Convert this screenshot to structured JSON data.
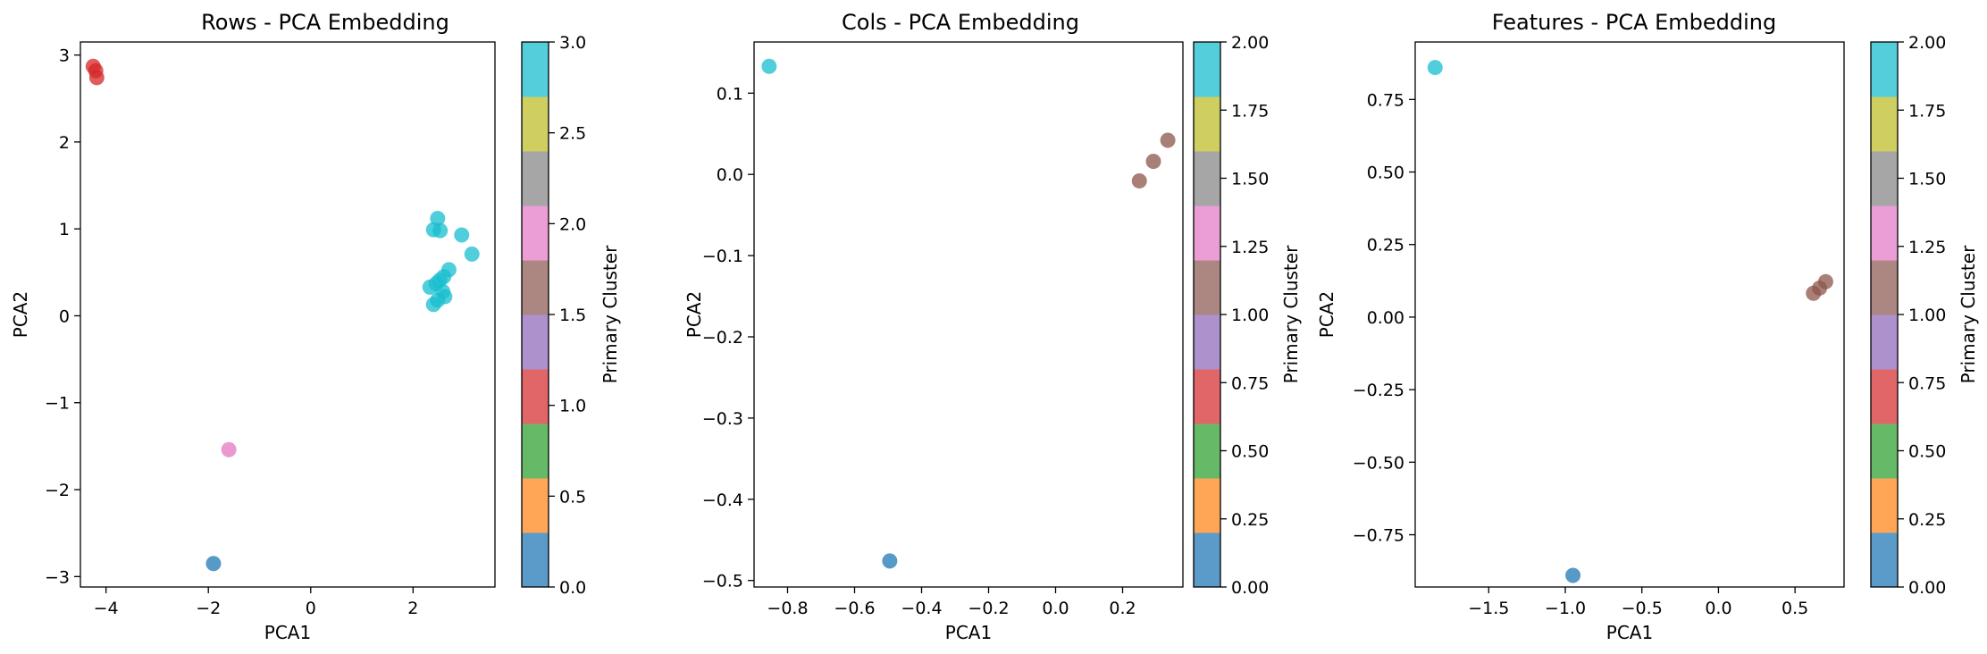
{
  "chart_data": [
    {
      "type": "scatter",
      "title": "Rows - PCA Embedding",
      "xlabel": "PCA1",
      "ylabel": "PCA2",
      "xlim": [
        -4.5,
        3.6
      ],
      "ylim": [
        -3.12,
        3.15
      ],
      "xticks": [
        -4,
        -2,
        0,
        2
      ],
      "yticks": [
        -3,
        -2,
        -1,
        0,
        1,
        2,
        3
      ],
      "xtick_labels": [
        "−4",
        "−2",
        "0",
        "2"
      ],
      "ytick_labels": [
        "−3",
        "−2",
        "−1",
        "0",
        "1",
        "2",
        "3"
      ],
      "colorbar": {
        "label": "Primary Cluster",
        "range": [
          0,
          3
        ],
        "ticks": [
          0,
          0.5,
          1,
          1.5,
          2,
          2.5,
          3
        ],
        "tick_labels": [
          "0.0",
          "0.5",
          "1.0",
          "1.5",
          "2.0",
          "2.5",
          "3.0"
        ]
      },
      "points": [
        {
          "x": -4.25,
          "y": 2.87,
          "cluster": "red"
        },
        {
          "x": -4.2,
          "y": 2.82,
          "cluster": "red"
        },
        {
          "x": -4.18,
          "y": 2.74,
          "cluster": "red"
        },
        {
          "x": -1.6,
          "y": -1.54,
          "cluster": "pink"
        },
        {
          "x": -1.9,
          "y": -2.85,
          "cluster": "blue"
        },
        {
          "x": 2.48,
          "y": 1.12,
          "cluster": "cyan"
        },
        {
          "x": 2.4,
          "y": 0.99,
          "cluster": "cyan"
        },
        {
          "x": 2.53,
          "y": 0.98,
          "cluster": "cyan"
        },
        {
          "x": 2.95,
          "y": 0.93,
          "cluster": "cyan"
        },
        {
          "x": 3.15,
          "y": 0.71,
          "cluster": "cyan"
        },
        {
          "x": 2.7,
          "y": 0.53,
          "cluster": "cyan"
        },
        {
          "x": 2.6,
          "y": 0.45,
          "cluster": "cyan"
        },
        {
          "x": 2.52,
          "y": 0.41,
          "cluster": "cyan"
        },
        {
          "x": 2.45,
          "y": 0.37,
          "cluster": "cyan"
        },
        {
          "x": 2.33,
          "y": 0.33,
          "cluster": "cyan"
        },
        {
          "x": 2.58,
          "y": 0.28,
          "cluster": "cyan"
        },
        {
          "x": 2.62,
          "y": 0.22,
          "cluster": "cyan"
        },
        {
          "x": 2.48,
          "y": 0.18,
          "cluster": "cyan"
        },
        {
          "x": 2.4,
          "y": 0.13,
          "cluster": "cyan"
        }
      ]
    },
    {
      "type": "scatter",
      "title": "Cols - PCA Embedding",
      "xlabel": "PCA1",
      "ylabel": "PCA2",
      "xlim": [
        -0.9,
        0.38
      ],
      "ylim": [
        -0.508,
        0.163
      ],
      "xticks": [
        -0.8,
        -0.6,
        -0.4,
        -0.2,
        0.0,
        0.2
      ],
      "yticks": [
        -0.5,
        -0.4,
        -0.3,
        -0.2,
        -0.1,
        0.0,
        0.1
      ],
      "xtick_labels": [
        "−0.8",
        "−0.6",
        "−0.4",
        "−0.2",
        "0.0",
        "0.2"
      ],
      "ytick_labels": [
        "−0.5",
        "−0.4",
        "−0.3",
        "−0.2",
        "−0.1",
        "0.0",
        "0.1"
      ],
      "colorbar": {
        "label": "Primary Cluster",
        "range": [
          0,
          2
        ],
        "ticks": [
          0,
          0.25,
          0.5,
          0.75,
          1,
          1.25,
          1.5,
          1.75,
          2
        ],
        "tick_labels": [
          "0.00",
          "0.25",
          "0.50",
          "0.75",
          "1.00",
          "1.25",
          "1.50",
          "1.75",
          "2.00"
        ]
      },
      "points": [
        {
          "x": -0.855,
          "y": 0.133,
          "cluster": "cyan"
        },
        {
          "x": -0.495,
          "y": -0.476,
          "cluster": "blue"
        },
        {
          "x": 0.335,
          "y": 0.042,
          "cluster": "brown"
        },
        {
          "x": 0.292,
          "y": 0.016,
          "cluster": "brown"
        },
        {
          "x": 0.25,
          "y": -0.008,
          "cluster": "brown"
        }
      ]
    },
    {
      "type": "scatter",
      "title": "Features - PCA Embedding",
      "xlabel": "PCA1",
      "ylabel": "PCA2",
      "xlim": [
        -1.98,
        0.82
      ],
      "ylim": [
        -0.93,
        0.948
      ],
      "xticks": [
        -1.5,
        -1.0,
        -0.5,
        0.0,
        0.5
      ],
      "yticks": [
        -0.75,
        -0.5,
        -0.25,
        0.0,
        0.25,
        0.5,
        0.75
      ],
      "xtick_labels": [
        "−1.5",
        "−1.0",
        "−0.5",
        "0.0",
        "0.5"
      ],
      "ytick_labels": [
        "−0.75",
        "−0.50",
        "−0.25",
        "0.00",
        "0.25",
        "0.50",
        "0.75"
      ],
      "colorbar": {
        "label": "Primary Cluster",
        "range": [
          0,
          2
        ],
        "ticks": [
          0,
          0.25,
          0.5,
          0.75,
          1,
          1.25,
          1.5,
          1.75,
          2
        ],
        "tick_labels": [
          "0.00",
          "0.25",
          "0.50",
          "0.75",
          "1.00",
          "1.25",
          "1.50",
          "1.75",
          "2.00"
        ]
      },
      "points": [
        {
          "x": -1.85,
          "y": 0.86,
          "cluster": "cyan"
        },
        {
          "x": -0.95,
          "y": -0.89,
          "cluster": "blue"
        },
        {
          "x": 0.62,
          "y": 0.082,
          "cluster": "brown"
        },
        {
          "x": 0.66,
          "y": 0.1,
          "cluster": "brown"
        },
        {
          "x": 0.7,
          "y": 0.122,
          "cluster": "brown"
        }
      ]
    }
  ],
  "colors": {
    "blue": "#1f77b4",
    "red": "#d62728",
    "pink": "#e377c2",
    "cyan": "#17becf",
    "brown": "#8c564b",
    "colorbar_bands": [
      "#5b9bc9",
      "#ffa556",
      "#66b966",
      "#e06667",
      "#ac91cc",
      "#ac8681",
      "#eb9dd5",
      "#a6a6a6",
      "#cfce60",
      "#55cedb"
    ]
  }
}
